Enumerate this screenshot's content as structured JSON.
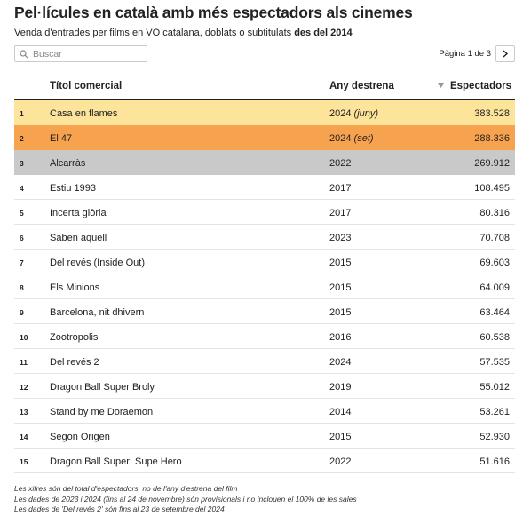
{
  "header": {
    "title": "Pel·lícules en català amb més espectadors als cinemes",
    "subtitle": "Venda d'entrades per films en VO catalana, doblats o subtitulats",
    "subtitle_bold": "des del 2014"
  },
  "controls": {
    "search_placeholder": "Buscar",
    "pagination": "Pàgina 1 de 3"
  },
  "table": {
    "columns": [
      "Títol comercial",
      "Any destrena",
      "Espectadors"
    ],
    "rows": [
      {
        "rank": 1,
        "title": "Casa en flames",
        "year": 2024,
        "year_note": "(juny)",
        "spectators": "383.528",
        "color": "#fde49b"
      },
      {
        "rank": 2,
        "title": "El 47",
        "year": 2024,
        "year_note": "(set)",
        "spectators": "288.336",
        "color": "#f7a24f"
      },
      {
        "rank": 3,
        "title": "Alcarràs",
        "year": 2022,
        "spectators": "269.912",
        "color": "#c9c9c9"
      },
      {
        "rank": 4,
        "title": "Estiu 1993",
        "year": 2017,
        "spectators": "108.495"
      },
      {
        "rank": 5,
        "title": "Incerta glòria",
        "year": 2017,
        "spectators": "80.316"
      },
      {
        "rank": 6,
        "title": "Saben aquell",
        "year": 2023,
        "spectators": "70.708"
      },
      {
        "rank": 7,
        "title": "Del revés (Inside Out)",
        "year": 2015,
        "spectators": "69.603"
      },
      {
        "rank": 8,
        "title": "Els Minions",
        "year": 2015,
        "spectators": "64.009"
      },
      {
        "rank": 9,
        "title": "Barcelona, nit dhivern",
        "year": 2015,
        "spectators": "63.464"
      },
      {
        "rank": 10,
        "title": "Zootropolis",
        "year": 2016,
        "spectators": "60.538"
      },
      {
        "rank": 11,
        "title": "Del revés 2",
        "year": 2024,
        "spectators": "57.535"
      },
      {
        "rank": 12,
        "title": "Dragon Ball Super Broly",
        "year": 2019,
        "spectators": "55.012"
      },
      {
        "rank": 13,
        "title": "Stand by me Doraemon",
        "year": 2014,
        "spectators": "53.261"
      },
      {
        "rank": 14,
        "title": "Segon Origen",
        "year": 2015,
        "spectators": "52.930"
      },
      {
        "rank": 15,
        "title": "Dragon Ball Super: Supe Hero",
        "year": 2022,
        "spectators": "51.616"
      }
    ]
  },
  "notes": [
    "Les xifres són del total d'espectadors, no de l'any d'estrena del film",
    "Les dades de 2023 i 2024 (fins al 24 de novembre) són provisionals i no inclouen el 100% de les sales",
    "Les dades de 'Del revés 2' són fins al 23 de setembre del 2024"
  ]
}
